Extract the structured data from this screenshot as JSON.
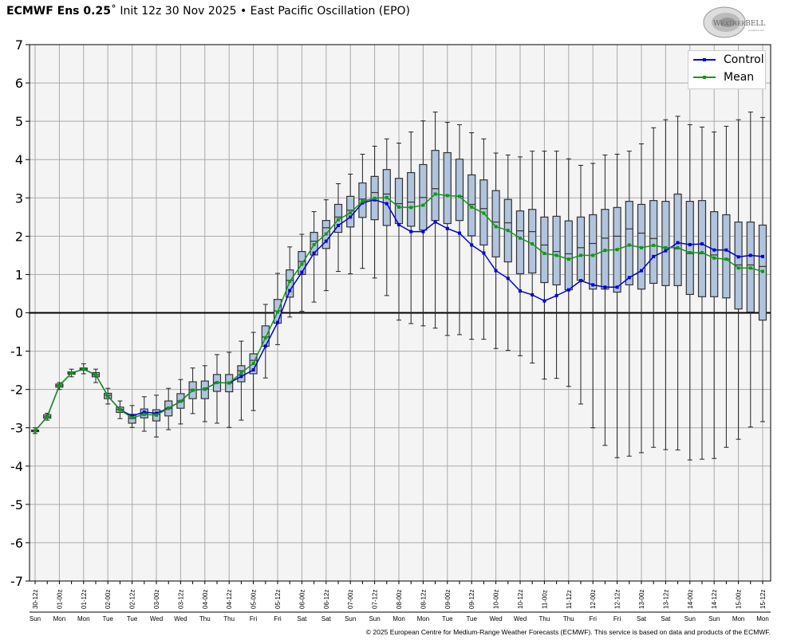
{
  "header": {
    "model": "ECMWF Ens 0.25",
    "degree_mark": "˚",
    "subtitle": "Init 12z 30 Nov 2025 • East Pacific Oscillation (EPO)"
  },
  "logo": {
    "text": "WeatherBELL",
    "subtext": "Analytics LLC"
  },
  "footer": {
    "copyright": "© 2025 European Centre for Medium-Range Weather Forecasts (ECMWF). This service is based on data and products of the ECMWF."
  },
  "colors": {
    "control": "#0000dd",
    "mean": "#119911",
    "box_fill": "#b0c4de",
    "box_edge": "#333333",
    "plot_bg": "#f4f4f4",
    "grid": "#aaaaaa"
  },
  "chart_data": {
    "type": "box",
    "title": "",
    "xlabel": "",
    "ylabel": "",
    "ylim": [
      -7,
      7
    ],
    "yticks": [
      -7,
      -6,
      -5,
      -4,
      -3,
      -2,
      -1,
      0,
      1,
      2,
      3,
      4,
      5,
      6,
      7
    ],
    "grid": true,
    "legend_position": "top-right",
    "x_step_hours": 6,
    "x_tick_labels": [
      "30-12z",
      "01-00z",
      "01-12z",
      "02-00z",
      "02-12z",
      "03-00z",
      "03-12z",
      "04-00z",
      "04-12z",
      "05-00z",
      "05-12z",
      "06-00z",
      "06-12z",
      "07-00z",
      "07-12z",
      "08-00z",
      "08-12z",
      "09-00z",
      "09-12z",
      "10-00z",
      "10-12z",
      "11-00z",
      "11-12z",
      "12-00z",
      "12-12z",
      "13-00z",
      "13-12z",
      "14-00z",
      "14-12z",
      "15-00z",
      "15-12z"
    ],
    "x_day_labels": [
      "Sun",
      "Mon",
      "Mon",
      "Tue",
      "Tue",
      "Wed",
      "Wed",
      "Thu",
      "Thu",
      "Fri",
      "Fri",
      "Sat",
      "Sat",
      "Sun",
      "Sun",
      "Mon",
      "Mon",
      "Tue",
      "Tue",
      "Wed",
      "Wed",
      "Thu",
      "Thu",
      "Fri",
      "Fri",
      "Sat",
      "Sat",
      "Sun",
      "Sun",
      "Mon",
      "Mon"
    ],
    "series": [
      {
        "name": "Control",
        "values": [
          -3.08,
          -2.71,
          -1.9,
          -1.57,
          -1.47,
          -1.62,
          -2.17,
          -2.53,
          -2.69,
          -2.59,
          -2.62,
          -2.49,
          -2.31,
          -2.02,
          -1.99,
          -1.82,
          -1.83,
          -1.66,
          -1.49,
          -0.87,
          -0.25,
          0.58,
          1.06,
          1.56,
          1.87,
          2.28,
          2.5,
          2.87,
          2.95,
          2.85,
          2.3,
          2.12,
          2.12,
          2.37,
          2.2,
          2.08,
          1.77,
          1.56,
          1.1,
          0.9,
          0.57,
          0.47,
          0.31,
          0.45,
          0.6,
          0.84,
          0.73,
          0.67,
          0.67,
          0.92,
          1.1,
          1.47,
          1.62,
          1.83,
          1.78,
          1.8,
          1.64,
          1.64,
          1.46,
          1.5,
          1.47
        ]
      },
      {
        "name": "Mean",
        "values": [
          -3.08,
          -2.71,
          -1.9,
          -1.57,
          -1.47,
          -1.62,
          -2.17,
          -2.53,
          -2.74,
          -2.65,
          -2.67,
          -2.49,
          -2.31,
          -2.02,
          -1.99,
          -1.82,
          -1.83,
          -1.57,
          -1.32,
          -0.65,
          0.02,
          0.82,
          1.27,
          1.78,
          2.06,
          2.43,
          2.61,
          2.91,
          2.99,
          3.01,
          2.76,
          2.75,
          2.81,
          3.1,
          3.06,
          3.04,
          2.76,
          2.6,
          2.25,
          2.15,
          1.95,
          1.8,
          1.55,
          1.5,
          1.4,
          1.5,
          1.5,
          1.63,
          1.65,
          1.77,
          1.7,
          1.76,
          1.7,
          1.7,
          1.57,
          1.57,
          1.43,
          1.4,
          1.17,
          1.17,
          1.08
        ]
      }
    ],
    "boxes": {
      "q3": [
        -3.06,
        -2.66,
        -1.86,
        -1.54,
        -1.44,
        -1.56,
        -2.1,
        -2.46,
        -2.65,
        -2.51,
        -2.53,
        -2.3,
        -2.11,
        -1.8,
        -1.78,
        -1.61,
        -1.61,
        -1.38,
        -1.07,
        -0.34,
        0.35,
        1.12,
        1.6,
        2.1,
        2.41,
        2.83,
        3.04,
        3.39,
        3.56,
        3.74,
        3.51,
        3.66,
        3.87,
        4.24,
        4.18,
        4.01,
        3.6,
        3.47,
        3.19,
        2.96,
        2.66,
        2.7,
        2.5,
        2.52,
        2.4,
        2.5,
        2.56,
        2.7,
        2.75,
        2.91,
        2.83,
        2.93,
        2.91,
        3.1,
        2.91,
        2.93,
        2.64,
        2.56,
        2.37,
        2.37,
        2.29
      ],
      "median": [
        -3.08,
        -2.71,
        -1.9,
        -1.57,
        -1.47,
        -1.62,
        -2.15,
        -2.52,
        -2.75,
        -2.63,
        -2.65,
        -2.49,
        -2.3,
        -2.01,
        -1.99,
        -1.82,
        -1.83,
        -1.51,
        -1.24,
        -0.63,
        0.05,
        0.85,
        1.34,
        1.87,
        2.22,
        2.5,
        2.68,
        2.97,
        3.14,
        3.1,
        2.85,
        2.89,
        3.01,
        3.24,
        3.06,
        3.04,
        2.83,
        2.72,
        2.37,
        2.35,
        2.14,
        2.12,
        1.77,
        1.6,
        1.54,
        1.7,
        1.81,
        1.95,
        2.0,
        2.19,
        2.08,
        1.94,
        1.7,
        1.67,
        1.55,
        1.55,
        1.51,
        1.4,
        1.25,
        1.25,
        1.21
      ],
      "q1": [
        -3.1,
        -2.75,
        -1.94,
        -1.6,
        -1.5,
        -1.67,
        -2.24,
        -2.6,
        -2.88,
        -2.74,
        -2.82,
        -2.69,
        -2.49,
        -2.24,
        -2.24,
        -2.05,
        -2.06,
        -1.8,
        -1.59,
        -0.87,
        -0.27,
        0.41,
        1.0,
        1.51,
        1.68,
        2.1,
        2.24,
        2.49,
        2.43,
        2.28,
        2.33,
        2.26,
        2.16,
        2.41,
        2.33,
        2.41,
        2.01,
        1.77,
        1.46,
        1.33,
        1.02,
        1.04,
        0.79,
        0.73,
        0.6,
        0.85,
        0.62,
        0.62,
        0.54,
        0.73,
        0.62,
        0.77,
        0.71,
        0.71,
        0.48,
        0.42,
        0.42,
        0.39,
        0.1,
        0.02,
        -0.19
      ],
      "max": [
        -3.0,
        -2.62,
        -1.82,
        -1.47,
        -1.33,
        -1.47,
        -1.97,
        -2.3,
        -2.42,
        -2.19,
        -2.15,
        -1.97,
        -1.74,
        -1.44,
        -1.38,
        -1.09,
        -1.03,
        -0.74,
        -0.51,
        0.22,
        1.03,
        1.72,
        2.05,
        2.64,
        2.95,
        3.37,
        3.62,
        4.14,
        4.35,
        4.54,
        4.43,
        4.72,
        5.01,
        5.24,
        4.97,
        4.91,
        4.7,
        4.54,
        4.17,
        4.12,
        4.07,
        4.22,
        4.22,
        4.22,
        4.02,
        3.85,
        3.9,
        4.12,
        4.14,
        4.22,
        4.41,
        4.83,
        5.04,
        5.13,
        4.91,
        4.85,
        4.72,
        4.87,
        5.04,
        5.24,
        5.1
      ],
      "min": [
        -3.15,
        -2.8,
        -2.0,
        -1.67,
        -1.59,
        -1.82,
        -2.38,
        -2.76,
        -2.99,
        -3.09,
        -3.24,
        -3.05,
        -2.9,
        -2.63,
        -2.84,
        -2.88,
        -2.99,
        -2.8,
        -2.55,
        -1.7,
        -0.83,
        -0.11,
        0.04,
        0.28,
        0.58,
        1.08,
        1.02,
        1.16,
        0.91,
        0.45,
        -0.19,
        -0.28,
        -0.34,
        -0.4,
        -0.59,
        -0.57,
        -0.69,
        -0.69,
        -0.93,
        -0.98,
        -1.12,
        -1.31,
        -1.73,
        -1.71,
        -1.92,
        -2.38,
        -3.0,
        -3.46,
        -3.78,
        -3.74,
        -3.65,
        -3.51,
        -3.57,
        -3.58,
        -3.84,
        -3.82,
        -3.8,
        -3.51,
        -3.3,
        -2.98,
        -2.84
      ]
    }
  }
}
